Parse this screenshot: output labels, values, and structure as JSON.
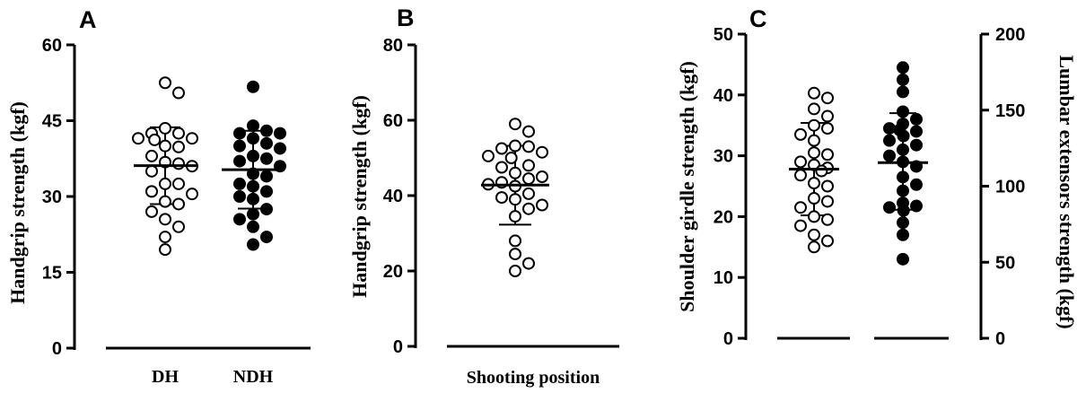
{
  "chart_data": [
    {
      "panel": "A",
      "type": "scatter",
      "ylabel": "Handgrip strength (kgf)",
      "ylim": [
        0,
        60
      ],
      "yticks": [
        0,
        15,
        30,
        45,
        60
      ],
      "categories": [
        "DH",
        "NDH"
      ],
      "series": [
        {
          "category": "DH",
          "marker": "open",
          "mean": 36.1,
          "sd_range": [
            28.5,
            43.7
          ],
          "values": [
            52.5,
            50.5,
            43.5,
            42.5,
            42.5,
            41.5,
            41.2,
            41.5,
            40.0,
            39.8,
            38.0,
            36.8,
            36.5,
            36.0,
            35.0,
            32.5,
            32.5,
            31.0,
            30.5,
            29.0,
            28.5,
            27.0,
            25.5,
            24.0,
            22.0,
            19.5
          ]
        },
        {
          "category": "NDH",
          "marker": "filled",
          "mean": 35.3,
          "sd_range": [
            27.6,
            43.0
          ],
          "values": [
            51.7,
            44.0,
            43.0,
            42.5,
            42.5,
            41.5,
            40.5,
            40.0,
            39.5,
            38.0,
            37.5,
            37.0,
            36.0,
            34.5,
            34.0,
            32.5,
            32.0,
            31.0,
            30.0,
            29.5,
            27.5,
            26.5,
            25.5,
            24.0,
            22.0,
            20.5
          ]
        }
      ]
    },
    {
      "panel": "B",
      "type": "scatter",
      "ylabel": "Handgrip strength (kgf)",
      "ylim": [
        0,
        80
      ],
      "yticks": [
        0,
        20,
        40,
        60,
        80
      ],
      "categories": [
        "Shooting position"
      ],
      "series": [
        {
          "category": "Shooting position",
          "marker": "open",
          "mean": 42.8,
          "sd_range": [
            32.3,
            53.2
          ],
          "values": [
            59.0,
            57.0,
            53.2,
            53.0,
            52.5,
            51.5,
            50.5,
            50.0,
            48.0,
            47.5,
            46.0,
            45.0,
            44.5,
            43.5,
            43.0,
            42.5,
            40.5,
            39.5,
            39.0,
            37.5,
            36.5,
            34.5,
            28.0,
            24.5,
            22.0,
            20.0
          ]
        }
      ]
    },
    {
      "panel": "C",
      "type": "scatter",
      "ylabel": "Shoulder girdle strength (kgf)",
      "y2label": "Lumbar extensors strength (kgf)",
      "ylim": [
        0,
        50
      ],
      "y2lim": [
        0,
        200
      ],
      "yticks": [
        0,
        10,
        20,
        30,
        40,
        50
      ],
      "y2ticks": [
        0,
        50,
        100,
        150,
        200
      ],
      "categories": [
        "",
        ""
      ],
      "series": [
        {
          "axis": "left",
          "marker": "open",
          "mean": 27.8,
          "sd_range": [
            20.2,
            35.4
          ],
          "values": [
            40.3,
            39.5,
            37.7,
            36.5,
            35.0,
            34.5,
            33.5,
            32.5,
            30.5,
            30.2,
            29.0,
            28.5,
            28.0,
            27.5,
            26.8,
            25.5,
            25.0,
            23.0,
            22.5,
            21.5,
            20.0,
            19.5,
            18.5,
            17.0,
            16.0,
            15.0
          ]
        },
        {
          "axis": "right",
          "marker": "filled",
          "mean": 115.5,
          "sd_range": [
            84.5,
            148.0
          ],
          "values": [
            178.0,
            170.0,
            162.0,
            149.0,
            144.0,
            141.0,
            138.0,
            137.0,
            136.0,
            133.0,
            130.0,
            127.0,
            124.0,
            120.0,
            116.0,
            113.0,
            106.0,
            101.0,
            97.0,
            89.0,
            87.0,
            86.0,
            84.0,
            76.0,
            68.0,
            52.0
          ]
        }
      ]
    }
  ]
}
